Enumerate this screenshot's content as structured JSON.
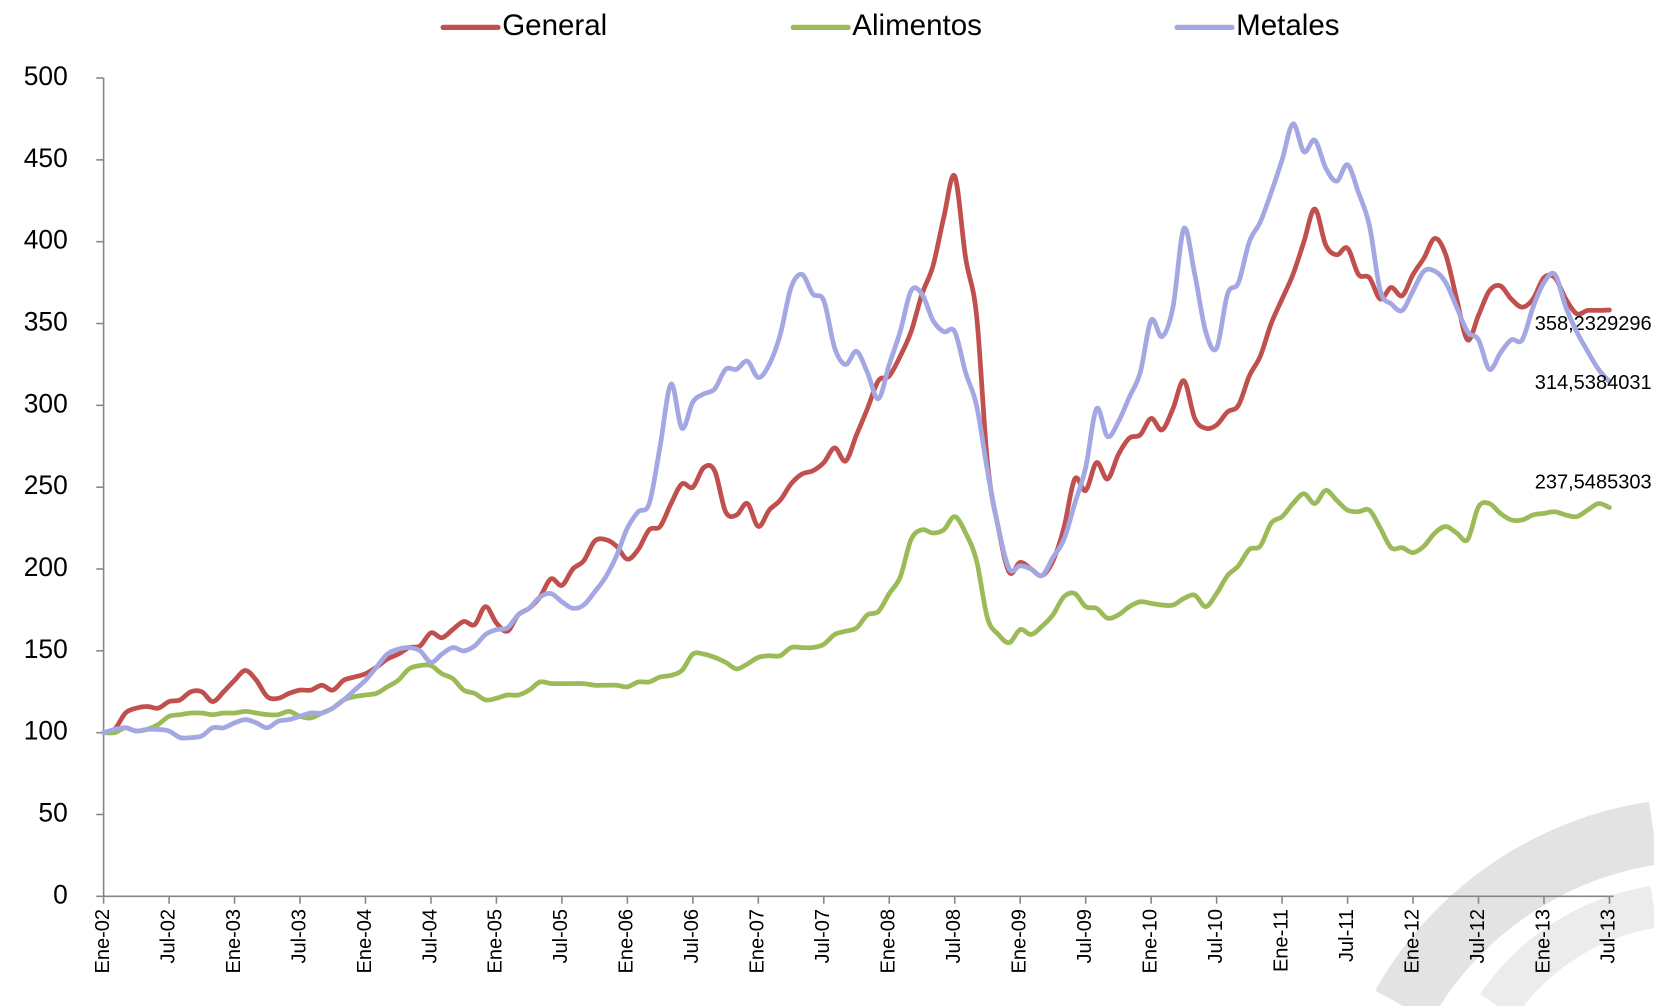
{
  "chart_data": {
    "type": "line",
    "categories": [
      "Ene-02",
      null,
      null,
      null,
      null,
      null,
      "Jul-02",
      null,
      null,
      null,
      null,
      null,
      "Ene-03",
      null,
      null,
      null,
      null,
      null,
      "Jul-03",
      null,
      null,
      null,
      null,
      null,
      "Ene-04",
      null,
      null,
      null,
      null,
      null,
      "Jul-04",
      null,
      null,
      null,
      null,
      null,
      "Ene-05",
      null,
      null,
      null,
      null,
      null,
      "Jul-05",
      null,
      null,
      null,
      null,
      null,
      "Ene-06",
      null,
      null,
      null,
      null,
      null,
      "Jul-06",
      null,
      null,
      null,
      null,
      null,
      "Ene-07",
      null,
      null,
      null,
      null,
      null,
      "Jul-07",
      null,
      null,
      null,
      null,
      null,
      "Ene-08",
      null,
      null,
      null,
      null,
      null,
      "Jul-08",
      null,
      null,
      null,
      null,
      null,
      "Ene-09",
      null,
      null,
      null,
      null,
      null,
      "Jul-09",
      null,
      null,
      null,
      null,
      null,
      "Ene-10",
      null,
      null,
      null,
      null,
      null,
      "Jul-10",
      null,
      null,
      null,
      null,
      null,
      "Ene-11",
      null,
      null,
      null,
      null,
      null,
      "Jul-11",
      null,
      null,
      null,
      null,
      null,
      "Ene-12",
      null,
      null,
      null,
      null,
      null,
      "Jul-12",
      null,
      null,
      null,
      null,
      null,
      "Ene-13",
      null,
      null,
      null,
      null,
      null,
      "Jul-13"
    ],
    "series": [
      {
        "name": "General",
        "color": "#c0504d",
        "values": [
          100,
          102,
          112,
          115,
          116,
          115,
          119,
          120,
          125,
          125,
          119,
          125,
          132,
          138,
          132,
          122,
          121,
          124,
          126,
          126,
          129,
          126,
          132,
          134,
          136,
          140,
          145,
          148,
          152,
          153,
          161,
          158,
          163,
          168,
          166,
          177,
          167,
          162,
          172,
          176,
          183,
          194,
          190,
          200,
          205,
          217,
          218,
          214,
          206,
          212,
          224,
          226,
          240,
          252,
          250,
          262,
          260,
          235,
          233,
          240,
          226,
          236,
          242,
          252,
          258,
          260,
          265,
          274,
          266,
          282,
          298,
          315,
          318,
          330,
          345,
          368,
          385,
          415,
          440,
          390,
          355,
          265,
          225,
          198,
          204,
          200,
          196,
          205,
          225,
          255,
          248,
          265,
          255,
          270,
          280,
          282,
          292,
          285,
          298,
          315,
          292,
          286,
          288,
          296,
          300,
          318,
          330,
          350,
          365,
          380,
          400,
          420,
          398,
          392,
          396,
          380,
          378,
          365,
          372,
          367,
          380,
          390,
          402,
          392,
          365,
          340,
          355,
          370,
          373,
          365,
          360,
          365,
          378,
          378,
          365,
          356,
          358,
          358,
          358.2329296
        ],
        "value_labels": [
          null,
          null,
          null,
          null,
          null,
          null,
          null,
          null,
          null,
          null,
          null,
          null,
          null,
          null,
          null,
          null,
          null,
          null,
          null,
          null,
          null,
          null,
          null,
          null,
          null,
          null,
          null,
          null,
          null,
          null,
          null,
          null,
          null,
          null,
          null,
          null,
          null,
          null,
          null,
          null,
          null,
          null,
          null,
          null,
          null,
          null,
          null,
          null,
          null,
          null,
          null,
          null,
          null,
          null,
          null,
          null,
          null,
          null,
          null,
          null,
          null,
          null,
          null,
          null,
          null,
          null,
          null,
          null,
          null,
          null,
          null,
          null,
          null,
          null,
          null,
          null,
          null,
          null,
          null,
          null,
          null,
          null,
          null,
          null,
          null,
          null,
          null,
          null,
          null,
          null,
          null,
          null,
          null,
          null,
          null,
          null,
          null,
          null,
          null,
          null,
          null,
          null,
          null,
          null,
          null,
          null,
          null,
          null,
          null,
          null,
          null,
          null,
          null,
          null,
          null,
          null,
          null,
          null,
          null,
          null,
          null,
          null,
          null,
          null,
          null,
          null,
          null,
          null,
          null,
          null,
          null,
          null,
          null,
          null,
          null,
          null,
          null,
          null,
          "358,2329296"
        ]
      },
      {
        "name": "Alimentos",
        "color": "#9bbb59",
        "values": [
          100,
          100,
          103,
          101,
          102,
          105,
          110,
          111,
          112,
          112,
          111,
          112,
          112,
          113,
          112,
          111,
          111,
          113,
          110,
          109,
          112,
          115,
          120,
          122,
          123,
          124,
          128,
          132,
          139,
          141,
          141,
          136,
          133,
          126,
          124,
          120,
          121,
          123,
          123,
          126,
          131,
          130,
          130,
          130,
          130,
          129,
          129,
          129,
          128,
          131,
          131,
          134,
          135,
          138,
          148,
          148,
          146,
          143,
          139,
          142,
          146,
          147,
          147,
          152,
          152,
          152,
          154,
          160,
          162,
          164,
          172,
          174,
          185,
          195,
          218,
          224,
          222,
          224,
          232,
          222,
          205,
          170,
          160,
          155,
          163,
          160,
          165,
          172,
          183,
          185,
          177,
          176,
          170,
          172,
          177,
          180,
          179,
          178,
          178,
          182,
          184,
          177,
          185,
          196,
          202,
          212,
          214,
          228,
          232,
          240,
          246,
          240,
          248,
          242,
          236,
          235,
          236,
          225,
          213,
          213,
          210,
          214,
          222,
          226,
          222,
          218,
          238,
          240,
          234,
          230,
          230,
          233,
          234,
          235,
          233,
          232,
          236,
          240,
          237.5485303
        ],
        "value_labels": [
          null,
          null,
          null,
          null,
          null,
          null,
          null,
          null,
          null,
          null,
          null,
          null,
          null,
          null,
          null,
          null,
          null,
          null,
          null,
          null,
          null,
          null,
          null,
          null,
          null,
          null,
          null,
          null,
          null,
          null,
          null,
          null,
          null,
          null,
          null,
          null,
          null,
          null,
          null,
          null,
          null,
          null,
          null,
          null,
          null,
          null,
          null,
          null,
          null,
          null,
          null,
          null,
          null,
          null,
          null,
          null,
          null,
          null,
          null,
          null,
          null,
          null,
          null,
          null,
          null,
          null,
          null,
          null,
          null,
          null,
          null,
          null,
          null,
          null,
          null,
          null,
          null,
          null,
          null,
          null,
          null,
          null,
          null,
          null,
          null,
          null,
          null,
          null,
          null,
          null,
          null,
          null,
          null,
          null,
          null,
          null,
          null,
          null,
          null,
          null,
          null,
          null,
          null,
          null,
          null,
          null,
          null,
          null,
          null,
          null,
          null,
          null,
          null,
          null,
          null,
          null,
          null,
          null,
          null,
          null,
          null,
          null,
          null,
          null,
          null,
          null,
          null,
          null,
          null,
          null,
          null,
          null,
          null,
          null,
          null,
          null,
          null,
          null,
          "237,5485303"
        ]
      },
      {
        "name": "Metales",
        "color": "#a4a8e2",
        "values": [
          100,
          102,
          103,
          101,
          102,
          102,
          101,
          97,
          97,
          98,
          103,
          103,
          106,
          108,
          106,
          103,
          107,
          108,
          110,
          112,
          112,
          115,
          120,
          126,
          132,
          140,
          148,
          151,
          152,
          150,
          143,
          148,
          152,
          150,
          153,
          160,
          163,
          164,
          172,
          176,
          183,
          185,
          180,
          176,
          178,
          186,
          195,
          208,
          225,
          235,
          240,
          275,
          313,
          286,
          302,
          307,
          310,
          322,
          322,
          327,
          317,
          325,
          343,
          372,
          380,
          368,
          364,
          335,
          325,
          333,
          320,
          304,
          325,
          345,
          370,
          368,
          352,
          345,
          345,
          320,
          300,
          260,
          225,
          200,
          202,
          200,
          196,
          207,
          218,
          240,
          262,
          298,
          281,
          290,
          305,
          320,
          352,
          342,
          360,
          408,
          380,
          345,
          335,
          368,
          375,
          400,
          412,
          430,
          450,
          472,
          455,
          462,
          445,
          437,
          447,
          430,
          410,
          370,
          362,
          358,
          370,
          382,
          382,
          375,
          360,
          345,
          340,
          322,
          332,
          340,
          340,
          360,
          375,
          380,
          360,
          345,
          333,
          322,
          314.5384031
        ],
        "value_labels": [
          null,
          null,
          null,
          null,
          null,
          null,
          null,
          null,
          null,
          null,
          null,
          null,
          null,
          null,
          null,
          null,
          null,
          null,
          null,
          null,
          null,
          null,
          null,
          null,
          null,
          null,
          null,
          null,
          null,
          null,
          null,
          null,
          null,
          null,
          null,
          null,
          null,
          null,
          null,
          null,
          null,
          null,
          null,
          null,
          null,
          null,
          null,
          null,
          null,
          null,
          null,
          null,
          null,
          null,
          null,
          null,
          null,
          null,
          null,
          null,
          null,
          null,
          null,
          null,
          null,
          null,
          null,
          null,
          null,
          null,
          null,
          null,
          null,
          null,
          null,
          null,
          null,
          null,
          null,
          null,
          null,
          null,
          null,
          null,
          null,
          null,
          null,
          null,
          null,
          null,
          null,
          null,
          null,
          null,
          null,
          null,
          null,
          null,
          null,
          null,
          null,
          null,
          null,
          null,
          null,
          null,
          null,
          null,
          null,
          null,
          null,
          null,
          null,
          null,
          null,
          null,
          null,
          null,
          null,
          null,
          null,
          null,
          null,
          null,
          null,
          null,
          null,
          null,
          null,
          null,
          null,
          null,
          null,
          null,
          null,
          null,
          null,
          null,
          "314,5384031"
        ]
      }
    ],
    "ylim": [
      0,
      500
    ],
    "yticks": [
      0,
      50,
      100,
      150,
      200,
      250,
      300,
      350,
      400,
      450,
      500
    ],
    "grid": false,
    "legend": "top"
  }
}
